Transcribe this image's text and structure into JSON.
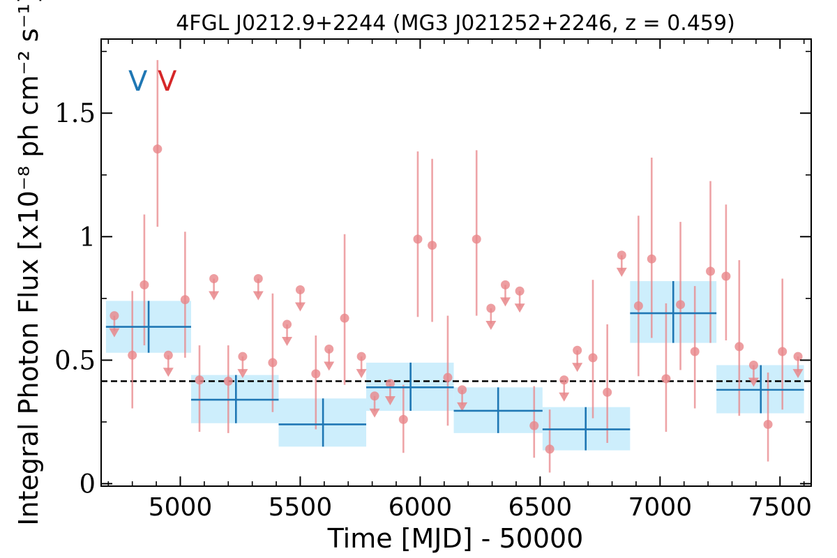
{
  "chart_data": {
    "type": "scatter",
    "title": "4FGL J0212.9+2244 (MG3 J021252+2246, z = 0.459)",
    "xlabel": "Time [MJD] - 50000",
    "ylabel": "Integral Photon Flux [x10⁻⁸ ph cm⁻² s⁻¹]",
    "xlim": [
      4670,
      7630
    ],
    "ylim": [
      -0.01,
      1.8
    ],
    "xticks": [
      5000,
      5500,
      6000,
      6500,
      7000,
      7500
    ],
    "xtick_labels": [
      "5000",
      "5500",
      "6000",
      "6500",
      "7000",
      "7500"
    ],
    "yticks": [
      0,
      0.5,
      1,
      1.5
    ],
    "ytick_labels": [
      "0",
      "0.5",
      "1",
      "1.5"
    ],
    "grid": false,
    "band_labels": [
      {
        "text": "V",
        "color": "#1f77b4"
      },
      {
        "text": "V",
        "color": "#d62728"
      }
    ],
    "reference_line": {
      "y": 0.415,
      "style": "dashed",
      "color": "#000000"
    },
    "colors": {
      "coarse": "#1f77b4",
      "coarse_fill": "#cdeefc",
      "fine": "#e8868a"
    },
    "coarse_bins": [
      {
        "x": 4868,
        "x_lo": 4690,
        "x_hi": 5045,
        "y": 0.635,
        "y_lo": 0.53,
        "y_hi": 0.74
      },
      {
        "x": 5232,
        "x_lo": 5045,
        "x_hi": 5410,
        "y": 0.34,
        "y_lo": 0.245,
        "y_hi": 0.44
      },
      {
        "x": 5595,
        "x_lo": 5410,
        "x_hi": 5775,
        "y": 0.24,
        "y_lo": 0.15,
        "y_hi": 0.345
      },
      {
        "x": 5960,
        "x_lo": 5775,
        "x_hi": 6140,
        "y": 0.39,
        "y_lo": 0.295,
        "y_hi": 0.49
      },
      {
        "x": 6325,
        "x_lo": 6140,
        "x_hi": 6510,
        "y": 0.295,
        "y_lo": 0.205,
        "y_hi": 0.39
      },
      {
        "x": 6690,
        "x_lo": 6510,
        "x_hi": 6875,
        "y": 0.22,
        "y_lo": 0.135,
        "y_hi": 0.31
      },
      {
        "x": 7055,
        "x_lo": 6875,
        "x_hi": 7235,
        "y": 0.69,
        "y_lo": 0.57,
        "y_hi": 0.82
      },
      {
        "x": 7420,
        "x_lo": 7235,
        "x_hi": 7600,
        "y": 0.38,
        "y_lo": 0.285,
        "y_hi": 0.48
      }
    ],
    "fine_points": [
      {
        "x": 4800,
        "y": 0.52,
        "y_lo": 0.305,
        "y_hi": 0.78
      },
      {
        "x": 4850,
        "y": 0.805,
        "y_lo": 0.56,
        "y_hi": 1.09
      },
      {
        "x": 4905,
        "y": 1.355,
        "y_lo": 1.04,
        "y_hi": 1.715
      },
      {
        "x": 5020,
        "y": 0.745,
        "y_lo": 0.51,
        "y_hi": 1.02
      },
      {
        "x": 5080,
        "y": 0.42,
        "y_lo": 0.21,
        "y_hi": 0.56
      },
      {
        "x": 5200,
        "y": 0.415,
        "y_lo": 0.205,
        "y_hi": 0.56
      },
      {
        "x": 5385,
        "y": 0.49,
        "y_lo": 0.29,
        "y_hi": 0.77
      },
      {
        "x": 5565,
        "y": 0.445,
        "y_lo": 0.22,
        "y_hi": 0.6
      },
      {
        "x": 5685,
        "y": 0.67,
        "y_lo": 0.4,
        "y_hi": 1.01
      },
      {
        "x": 5930,
        "y": 0.26,
        "y_lo": 0.125,
        "y_hi": 0.4
      },
      {
        "x": 5990,
        "y": 0.99,
        "y_lo": 0.675,
        "y_hi": 1.345
      },
      {
        "x": 6050,
        "y": 0.965,
        "y_lo": 0.655,
        "y_hi": 1.315
      },
      {
        "x": 6115,
        "y": 0.43,
        "y_lo": 0.235,
        "y_hi": 0.68
      },
      {
        "x": 6235,
        "y": 0.99,
        "y_lo": 0.68,
        "y_hi": 1.35
      },
      {
        "x": 6475,
        "y": 0.235,
        "y_lo": 0.105,
        "y_hi": 0.395
      },
      {
        "x": 6540,
        "y": 0.14,
        "y_lo": 0.045,
        "y_hi": 0.3
      },
      {
        "x": 6720,
        "y": 0.51,
        "y_lo": 0.265,
        "y_hi": 0.825
      },
      {
        "x": 6780,
        "y": 0.37,
        "y_lo": 0.165,
        "y_hi": 0.645
      },
      {
        "x": 6910,
        "y": 0.72,
        "y_lo": 0.435,
        "y_hi": 1.085
      },
      {
        "x": 6965,
        "y": 0.91,
        "y_lo": 0.59,
        "y_hi": 1.32
      },
      {
        "x": 7025,
        "y": 0.425,
        "y_lo": 0.21,
        "y_hi": 0.73
      },
      {
        "x": 7085,
        "y": 0.725,
        "y_lo": 0.46,
        "y_hi": 1.06
      },
      {
        "x": 7145,
        "y": 0.535,
        "y_lo": 0.305,
        "y_hi": 0.8
      },
      {
        "x": 7210,
        "y": 0.86,
        "y_lo": 0.57,
        "y_hi": 1.225
      },
      {
        "x": 7275,
        "y": 0.84,
        "y_lo": 0.58,
        "y_hi": 1.13
      },
      {
        "x": 7330,
        "y": 0.555,
        "y_lo": 0.275,
        "y_hi": 0.905
      },
      {
        "x": 7450,
        "y": 0.24,
        "y_lo": 0.09,
        "y_hi": 0.45
      },
      {
        "x": 7510,
        "y": 0.535,
        "y_lo": 0.3,
        "y_hi": 0.83
      }
    ],
    "upper_limits": [
      {
        "x": 4725,
        "y": 0.68
      },
      {
        "x": 4950,
        "y": 0.52
      },
      {
        "x": 5140,
        "y": 0.83
      },
      {
        "x": 5260,
        "y": 0.515
      },
      {
        "x": 5325,
        "y": 0.83
      },
      {
        "x": 5445,
        "y": 0.645
      },
      {
        "x": 5500,
        "y": 0.785
      },
      {
        "x": 5620,
        "y": 0.545
      },
      {
        "x": 5755,
        "y": 0.515
      },
      {
        "x": 5810,
        "y": 0.355
      },
      {
        "x": 5875,
        "y": 0.405
      },
      {
        "x": 6175,
        "y": 0.38
      },
      {
        "x": 6295,
        "y": 0.71
      },
      {
        "x": 6355,
        "y": 0.805
      },
      {
        "x": 6415,
        "y": 0.78
      },
      {
        "x": 6600,
        "y": 0.42
      },
      {
        "x": 6655,
        "y": 0.54
      },
      {
        "x": 6840,
        "y": 0.925
      },
      {
        "x": 7390,
        "y": 0.48
      },
      {
        "x": 7575,
        "y": 0.515
      }
    ]
  }
}
